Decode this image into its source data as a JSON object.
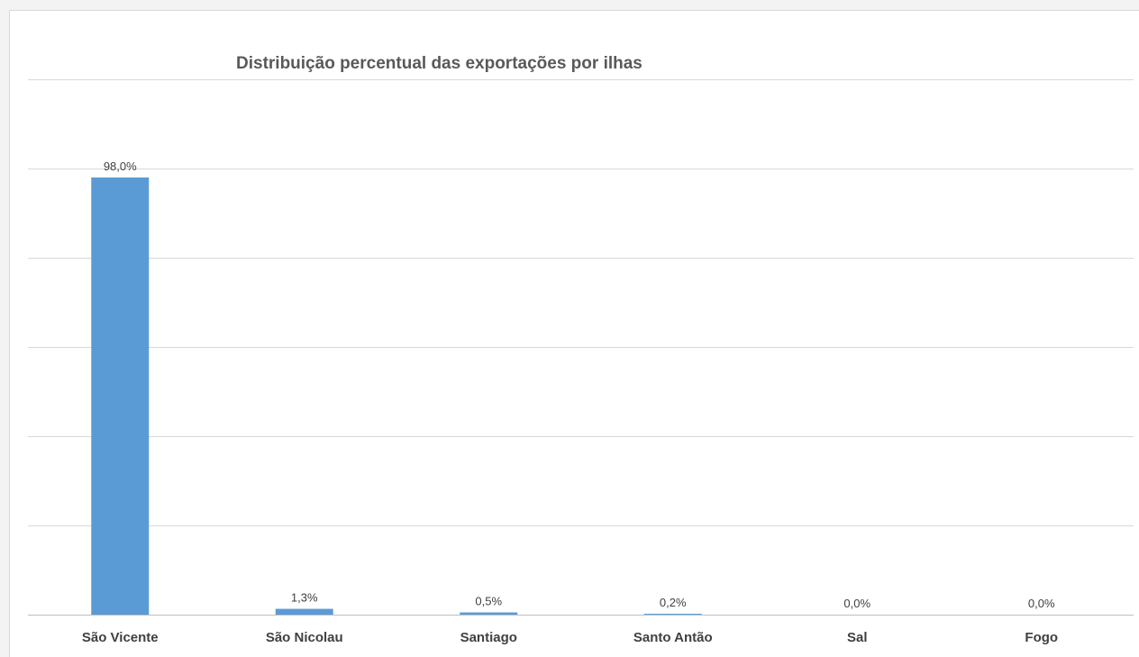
{
  "chart_data": {
    "type": "bar",
    "title": "Distribuição percentual das exportações por ilhas",
    "xlabel": "",
    "ylabel": "",
    "ylim": [
      0,
      120
    ],
    "grid": true,
    "categories": [
      "São Vicente",
      "São Nicolau",
      "Santiago",
      "Santo Antão",
      "Sal",
      "Fogo"
    ],
    "values": [
      98.0,
      1.3,
      0.5,
      0.2,
      0.0,
      0.0
    ],
    "data_labels": [
      "98,0%",
      "1,3%",
      "0,5%",
      "0,2%",
      "0,0%",
      "0,0%"
    ],
    "bar_color": "#5b9bd5"
  }
}
